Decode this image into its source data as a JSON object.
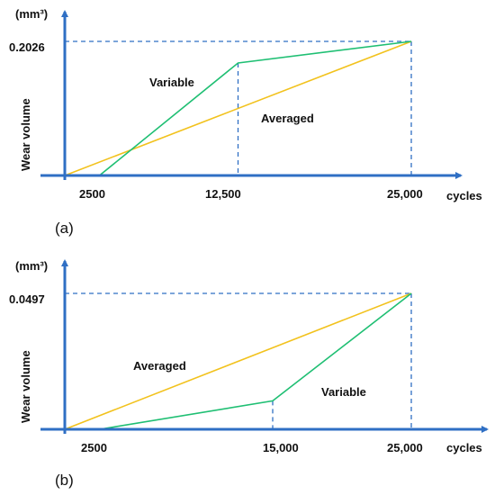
{
  "colors": {
    "axis": "#2f6fc4",
    "guide": "#2f6fc4",
    "averaged": "#f2c21d",
    "variable": "#1fbf73"
  },
  "chart_data": [
    {
      "type": "line",
      "panel": "(a)",
      "ylabel": "Wear volume",
      "yunit": "(mm³)",
      "xlabel": "cycles",
      "y_tick_label": "0.2026",
      "x_tick_labels": [
        "2500",
        "12,500",
        "25,000"
      ],
      "series": [
        {
          "name": "Averaged",
          "x": [
            0,
            25000
          ],
          "y": [
            0,
            0.2026
          ]
        },
        {
          "name": "Variable",
          "x": [
            2500,
            12500,
            25000
          ],
          "y": [
            0,
            0.17,
            0.2026
          ]
        }
      ]
    },
    {
      "type": "line",
      "panel": "(b)",
      "ylabel": "Wear volume",
      "yunit": "(mm³)",
      "xlabel": "cycles",
      "y_tick_label": "0.0497",
      "x_tick_labels": [
        "2500",
        "15,000",
        "25,000"
      ],
      "series": [
        {
          "name": "Averaged",
          "x": [
            0,
            25000
          ],
          "y": [
            0,
            0.0497
          ]
        },
        {
          "name": "Variable",
          "x": [
            2500,
            15000,
            25000
          ],
          "y": [
            0,
            0.0104,
            0.0497
          ]
        }
      ]
    }
  ]
}
